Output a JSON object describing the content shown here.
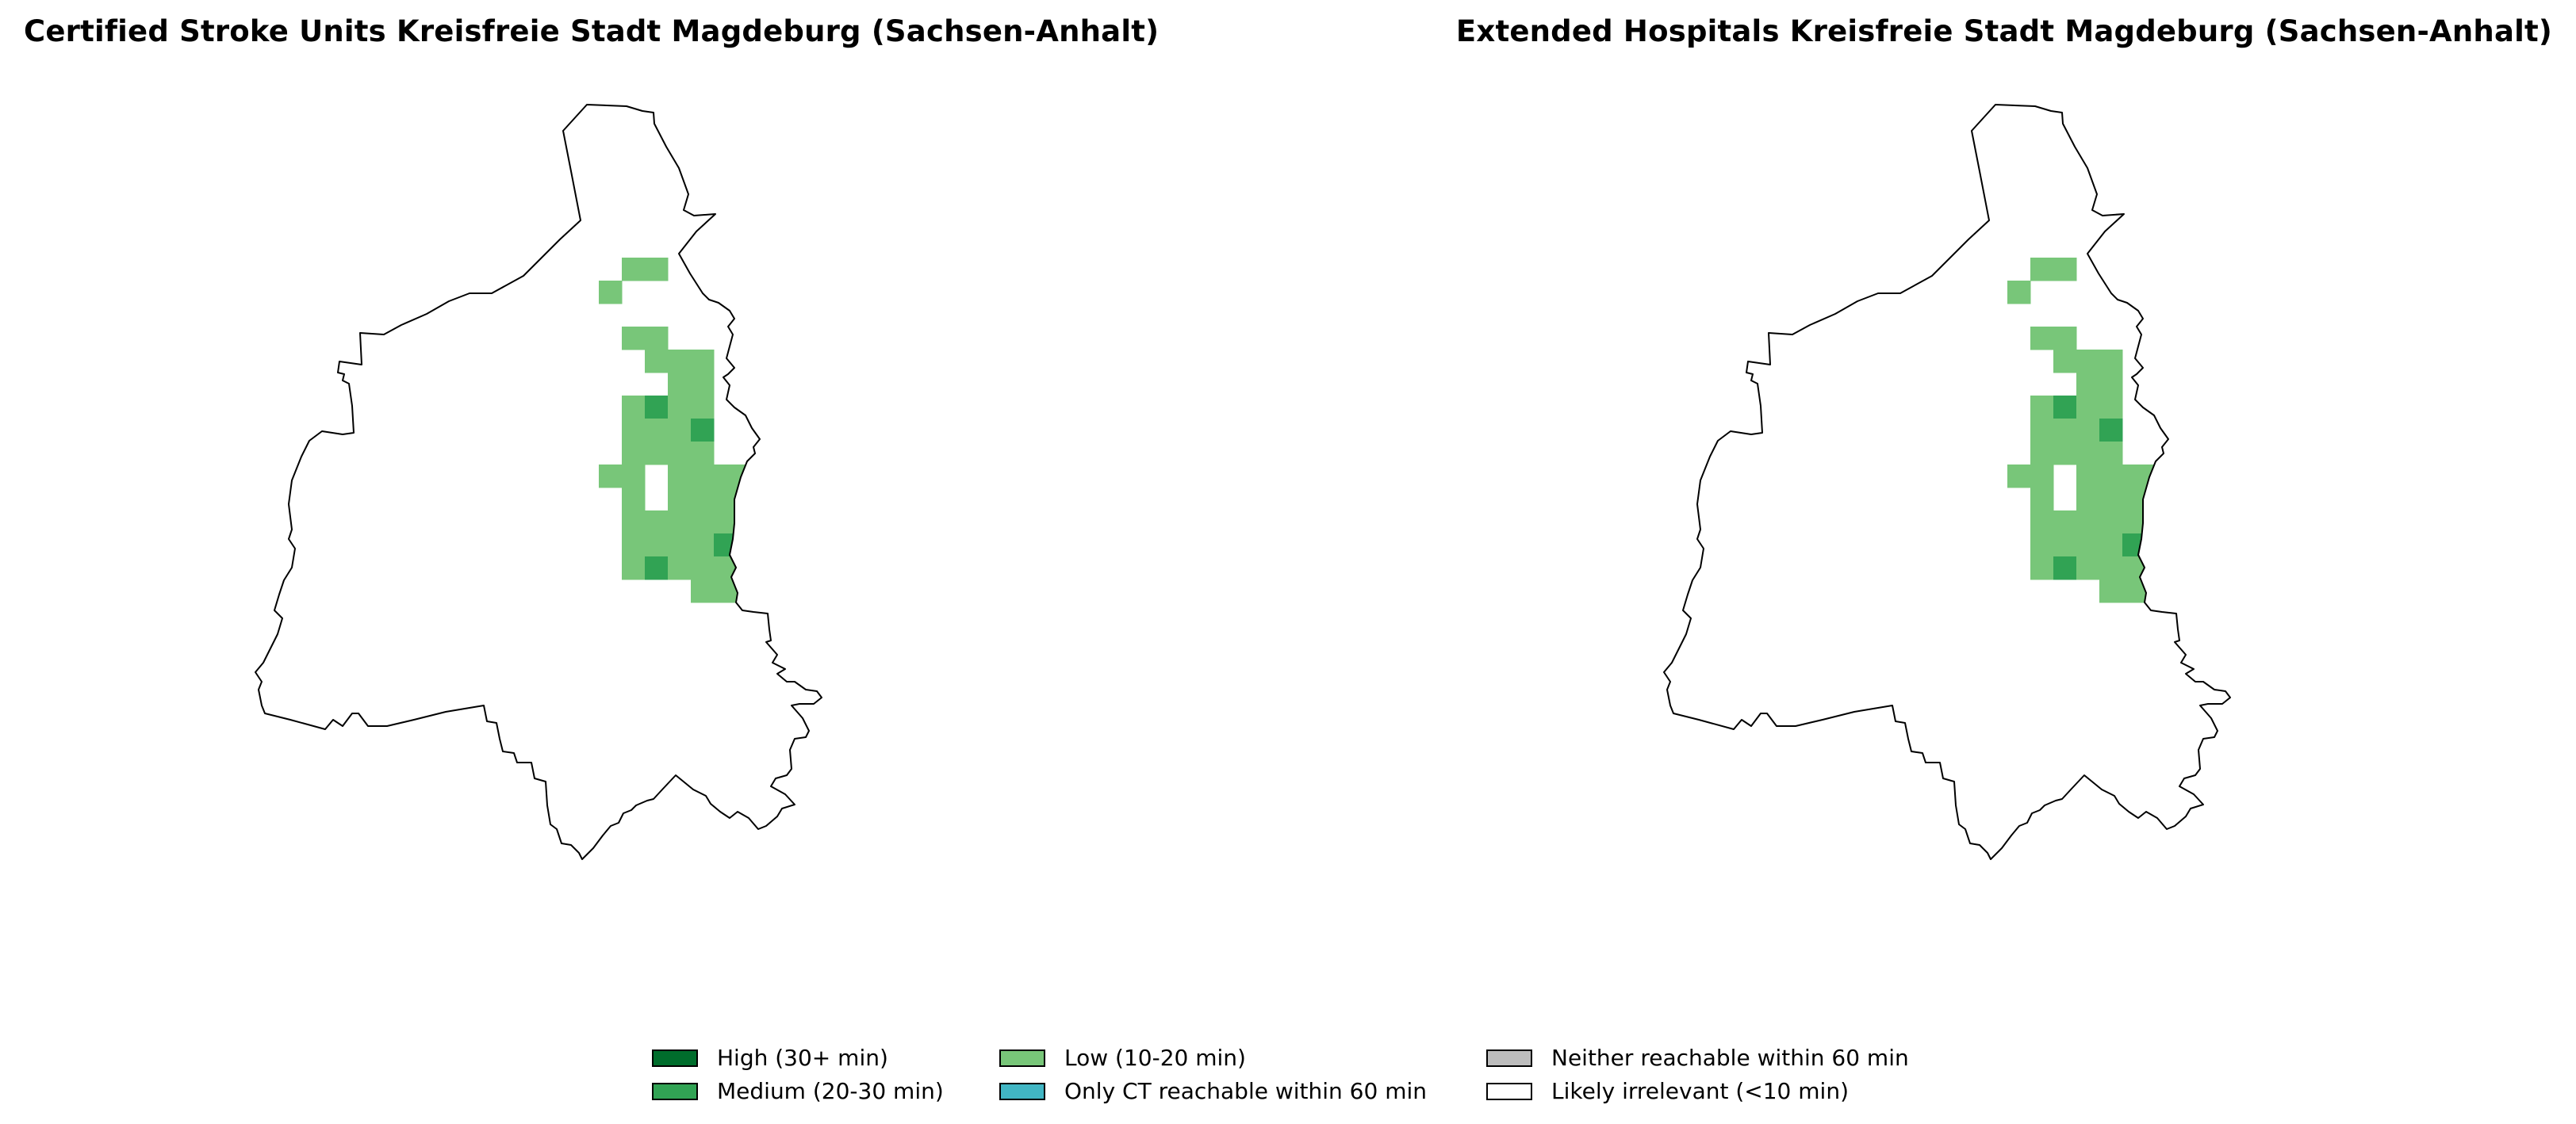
{
  "panels": [
    {
      "title": "Certified Stroke Units Kreisfreie Stadt Magdeburg (Sachsen-Anhalt)"
    },
    {
      "title": "Extended Hospitals Kreisfreie Stadt Magdeburg (Sachsen-Anhalt)"
    }
  ],
  "legend": [
    {
      "label": "High (30+ min)",
      "color": "#006d2c"
    },
    {
      "label": "Medium (20-30 min)",
      "color": "#31a354"
    },
    {
      "label": "Low (10-20 min)",
      "color": "#78c679"
    },
    {
      "label": "Only CT reachable within 60 min",
      "color": "#41b6c4"
    },
    {
      "label": "Neither reachable within 60 min",
      "color": "#bdbdbd"
    },
    {
      "label": "Likely irrelevant (<10 min)",
      "color": "#ffffff"
    }
  ]
}
